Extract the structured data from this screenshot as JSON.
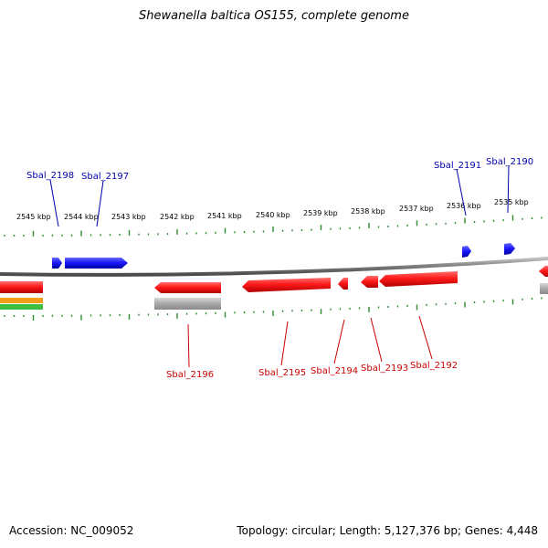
{
  "title": "Shewanella baltica OS155, complete genome",
  "footer": {
    "accession": "Accession: NC_009052",
    "summary": "Topology: circular; Length: 5,127,376 bp; Genes: 4,448"
  },
  "colors": {
    "forward_gene": "#1a1aff",
    "reverse_gene": "#e81010",
    "forward_label": "#0000aa",
    "reverse_label": "#cc0000",
    "backbone": "#8a8a8a",
    "tick": "#2e8b2e",
    "rna_gene": "#b0b0b0"
  },
  "scale": {
    "unit": "kbp",
    "ticks": [
      "2545 kbp",
      "2544 kbp",
      "2543 kbp",
      "2542 kbp",
      "2541 kbp",
      "2540 kbp",
      "2539 kbp",
      "2538 kbp",
      "2537 kbp",
      "2536 kbp",
      "2535 kbp"
    ]
  },
  "genes": {
    "forward": [
      "Sbal_2198",
      "Sbal_2197",
      "Sbal_2191",
      "Sbal_2190"
    ],
    "reverse": [
      "Sbal_2196",
      "Sbal_2195",
      "Sbal_2194",
      "Sbal_2193",
      "Sbal_2192"
    ]
  }
}
